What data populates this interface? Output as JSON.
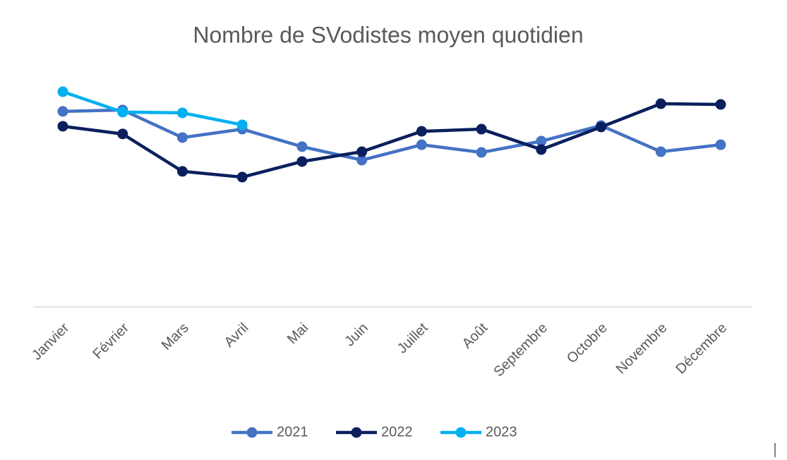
{
  "chart_data": {
    "type": "line",
    "title": "Nombre de SVodistes moyen quotidien",
    "categories": [
      "Janvier",
      "Février",
      "Mars",
      "Avril",
      "Mai",
      "Juin",
      "Juillet",
      "Août",
      "Septembre",
      "Octobre",
      "Novembre",
      "Décembre"
    ],
    "series": [
      {
        "name": "2021",
        "color": "#4472c4",
        "values": [
          81.5,
          82.1,
          70.6,
          74.1,
          66.8,
          61.2,
          67.6,
          64.4,
          69.1,
          75.6,
          64.7,
          67.6
        ]
      },
      {
        "name": "2022",
        "color": "#0b1f5e",
        "values": [
          75.3,
          72.1,
          56.5,
          54.1,
          60.6,
          64.7,
          73.2,
          74.1,
          65.6,
          75.0,
          84.7,
          84.4
        ]
      },
      {
        "name": "2023",
        "color": "#00b0f0",
        "values": [
          89.7,
          81.2,
          80.9,
          75.9,
          null,
          null,
          null,
          null,
          null,
          null,
          null,
          null
        ]
      }
    ],
    "ylim": [
      0,
      100
    ],
    "legend": "bottom"
  }
}
